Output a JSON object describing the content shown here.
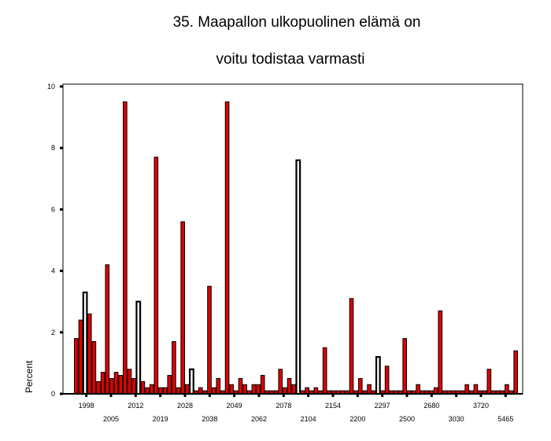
{
  "chart_data": {
    "type": "bar",
    "title": [
      "35. Maapallon ulkopuolinen elämä on",
      "voitu todistaa varmasti"
    ],
    "xlabel": "",
    "ylabel": "Percent",
    "ylim": [
      0,
      10
    ],
    "yticks": [
      0,
      2,
      4,
      6,
      8,
      10
    ],
    "x_tick_labels_row1": [
      "1998",
      "2012",
      "2028",
      "2049",
      "2078",
      "2154",
      "2297",
      "2680",
      "3720"
    ],
    "x_tick_labels_row2": [
      "2005",
      "2019",
      "2038",
      "2062",
      "2104",
      "2200",
      "2500",
      "3030",
      "5465"
    ],
    "colors": {
      "bar": "#e00000",
      "outline": "#000000",
      "axis": "#000000"
    },
    "values": [
      1.8,
      2.4,
      3.3,
      2.6,
      1.7,
      0.4,
      0.7,
      4.2,
      0.5,
      0.7,
      0.6,
      9.5,
      0.8,
      0.5,
      3.0,
      0.4,
      0.2,
      0.3,
      7.7,
      0.2,
      0.2,
      0.6,
      1.7,
      0.2,
      5.6,
      0.3,
      0.8,
      0.1,
      0.2,
      0.1,
      3.5,
      0.2,
      0.5,
      0.1,
      9.5,
      0.3,
      0.1,
      0.5,
      0.3,
      0.1,
      0.3,
      0.3,
      0.6,
      0.1,
      0.1,
      0.1,
      0.8,
      0.2,
      0.5,
      0.3,
      7.6,
      0.1,
      0.2,
      0.1,
      0.2,
      0.1,
      1.5,
      0.1,
      0.1,
      0.1,
      0.1,
      0.1,
      3.1,
      0.1,
      0.5,
      0.1,
      0.3,
      0.1,
      1.2,
      0.1,
      0.9,
      0.1,
      0.1,
      0.1,
      1.8,
      0.1,
      0.1,
      0.3,
      0.1,
      0.1,
      0.1,
      0.2,
      2.7,
      0.1,
      0.1,
      0.1,
      0.1,
      0.1,
      0.3,
      0.1,
      0.3,
      0.1,
      0.1,
      0.8,
      0.1,
      0.1,
      0.1,
      0.3,
      0.1,
      1.4
    ],
    "outlined_bars": [
      2,
      14,
      26,
      50,
      68
    ]
  }
}
